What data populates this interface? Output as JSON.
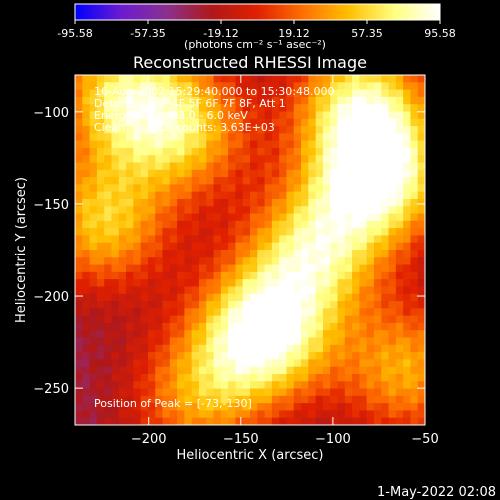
{
  "colors": {
    "background": "#000000",
    "text": "#ffffff",
    "colormap": [
      "#0000ff",
      "#6a1bd0",
      "#8a3090",
      "#b01818",
      "#e02000",
      "#ff7000",
      "#ffc000",
      "#ffff80",
      "#ffffff"
    ]
  },
  "colorbar": {
    "ticks": [
      "-95.58",
      "-57.35",
      "-19.12",
      "19.12",
      "57.35",
      "95.58"
    ],
    "range": [
      -95.58,
      95.58
    ],
    "unit_label": "(photons cm⁻² s⁻¹ asec⁻²)"
  },
  "chart_data": {
    "type": "heatmap",
    "title": "Reconstructed RHESSI Image",
    "xlabel": "Heliocentric X (arcsec)",
    "ylabel": "Heliocentric Y (arcsec)",
    "xlim": [
      -240,
      -50
    ],
    "ylim": [
      -270,
      -80
    ],
    "xticks": [
      -200,
      -150,
      -100,
      -50
    ],
    "yticks": [
      -100,
      -150,
      -200,
      -250
    ],
    "value_range": [
      -95.58,
      95.58
    ],
    "peak": {
      "x": -73,
      "y": -130
    },
    "sources": [
      {
        "x": -138,
        "y": -220,
        "value": 95
      },
      {
        "x": -75,
        "y": -135,
        "value": 85
      },
      {
        "x": -110,
        "y": -175,
        "value": 60
      },
      {
        "x": -215,
        "y": -90,
        "value": 55
      },
      {
        "x": -225,
        "y": -160,
        "value": 50
      },
      {
        "x": -180,
        "y": -110,
        "value": 45
      },
      {
        "x": -85,
        "y": -95,
        "value": 60
      },
      {
        "x": -175,
        "y": -255,
        "value": 30
      },
      {
        "x": -60,
        "y": -240,
        "value": 40
      }
    ],
    "annotations": {
      "time": "16-Aug-2002 15:29:40.000 to 15:30:48.000",
      "detectors": "Detectors: 3F 4F 5F 6F 7F 8F, Att 1",
      "energy": "Energy Range: 3.0 - 6.0 keV",
      "method": "Clean",
      "counts": "Total counts: 3.63E+03",
      "peak_text": "Position of Peak = [-73,-130]"
    }
  },
  "footer": {
    "timestamp": "1-May-2022 02:08"
  }
}
